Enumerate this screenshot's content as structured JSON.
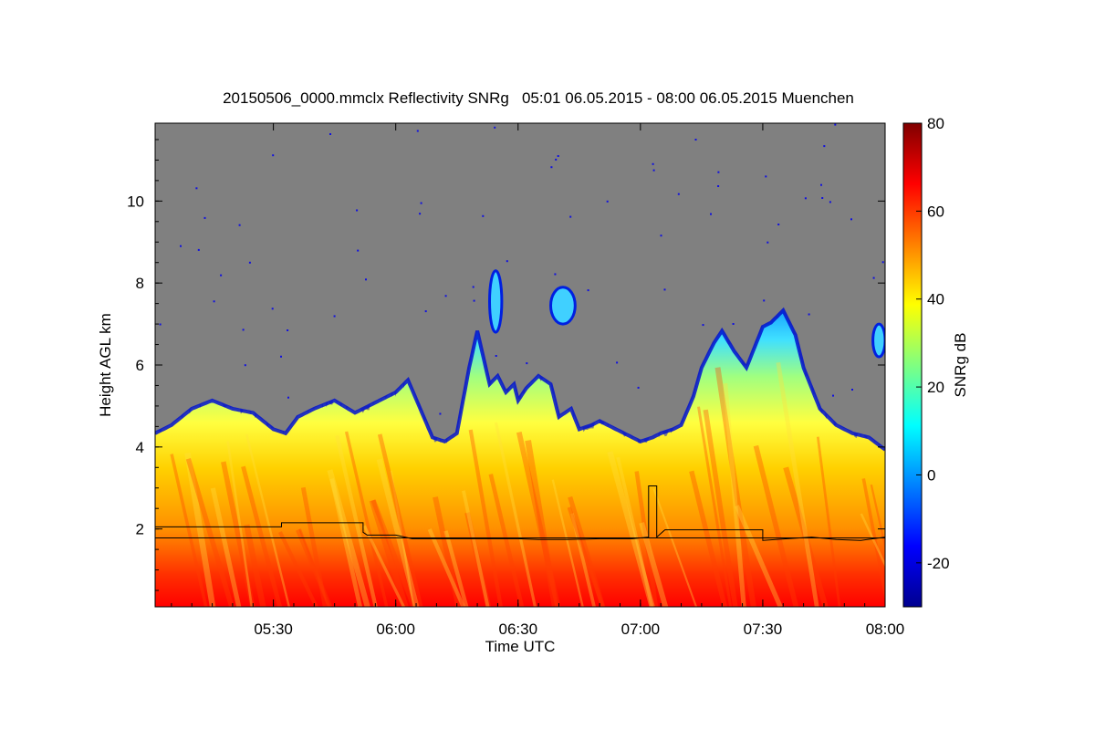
{
  "chart_data": {
    "type": "heatmap",
    "title": "20150506_0000.mmclx Reflectivity SNRg   05:01 06.05.2015 - 08:00 06.05.2015 Muenchen",
    "xlabel": "Time UTC",
    "ylabel": "Height AGL km",
    "colorbar_label": "SNRg dB",
    "x_range_minutes": [
      301,
      480
    ],
    "x_ticks": [
      {
        "minutes": 330,
        "label": "05:30"
      },
      {
        "minutes": 360,
        "label": "06:00"
      },
      {
        "minutes": 390,
        "label": "06:30"
      },
      {
        "minutes": 420,
        "label": "07:00"
      },
      {
        "minutes": 450,
        "label": "07:30"
      },
      {
        "minutes": 480,
        "label": "08:00"
      }
    ],
    "y_range_km": [
      0.1,
      11.9
    ],
    "y_ticks": [
      {
        "value": 2,
        "label": "2"
      },
      {
        "value": 4,
        "label": "4"
      },
      {
        "value": 6,
        "label": "6"
      },
      {
        "value": 8,
        "label": "8"
      },
      {
        "value": 10,
        "label": "10"
      }
    ],
    "colorbar_range": [
      -30,
      80
    ],
    "colorbar_ticks": [
      {
        "value": -20,
        "label": "-20"
      },
      {
        "value": 0,
        "label": "0"
      },
      {
        "value": 20,
        "label": "20"
      },
      {
        "value": 40,
        "label": "40"
      },
      {
        "value": 60,
        "label": "60"
      },
      {
        "value": 80,
        "label": "80"
      }
    ],
    "colormap": [
      "#00008f",
      "#0000ff",
      "#0080ff",
      "#00ffff",
      "#80ff80",
      "#ffff00",
      "#ff8000",
      "#ff0000",
      "#800000"
    ],
    "background_color": "#808080",
    "echo_top_km": {
      "minutes": [
        301,
        305,
        310,
        315,
        320,
        325,
        330,
        333,
        336,
        340,
        345,
        350,
        352,
        356,
        360,
        363,
        366,
        369,
        372,
        375,
        378,
        380,
        383,
        385,
        387,
        389,
        390,
        392,
        395,
        398,
        400,
        403,
        405,
        408,
        410,
        414,
        418,
        420,
        423,
        425,
        428,
        430,
        433,
        435,
        438,
        440,
        443,
        446,
        448,
        450,
        452,
        455,
        458,
        460,
        464,
        468,
        472,
        476,
        480
      ],
      "values": [
        4.4,
        4.6,
        5.0,
        5.2,
        5.0,
        4.9,
        4.5,
        4.4,
        4.8,
        5.0,
        5.2,
        4.9,
        5.0,
        5.2,
        5.4,
        5.7,
        5.0,
        4.3,
        4.2,
        4.4,
        6.0,
        6.9,
        5.6,
        5.8,
        5.4,
        5.6,
        5.2,
        5.5,
        5.8,
        5.6,
        4.8,
        5.0,
        4.5,
        4.6,
        4.7,
        4.5,
        4.3,
        4.2,
        4.3,
        4.4,
        4.5,
        4.6,
        5.3,
        6.0,
        6.6,
        6.9,
        6.4,
        6.0,
        6.5,
        7.0,
        7.1,
        7.4,
        6.8,
        6.0,
        5.0,
        4.6,
        4.4,
        4.3,
        4.0
      ]
    },
    "isolated_echoes": [
      {
        "minutes": [
          383,
          386
        ],
        "height_km": [
          6.8,
          8.3
        ]
      },
      {
        "minutes": [
          398,
          404
        ],
        "height_km": [
          7.0,
          7.9
        ]
      },
      {
        "minutes": [
          477,
          480
        ],
        "height_km": [
          6.2,
          7.0
        ]
      }
    ],
    "lines": [
      {
        "name": "upper_line",
        "x_minutes": [
          301,
          332,
          332,
          352,
          352,
          353,
          360,
          364,
          371,
          380,
          390,
          395,
          402,
          410,
          418,
          420,
          422,
          422,
          424,
          424,
          426,
          440,
          442,
          450,
          450,
          456,
          462,
          468,
          474,
          480
        ],
        "y_km": [
          2.05,
          2.05,
          2.15,
          2.15,
          1.92,
          1.85,
          1.85,
          1.76,
          1.76,
          1.76,
          1.76,
          1.74,
          1.74,
          1.76,
          1.76,
          1.78,
          1.8,
          3.05,
          3.05,
          1.8,
          1.98,
          1.98,
          1.98,
          1.98,
          1.72,
          1.76,
          1.8,
          1.74,
          1.72,
          1.8
        ]
      },
      {
        "name": "lower_line",
        "x_minutes": [
          301,
          480
        ],
        "y_km": [
          1.78,
          1.78
        ]
      }
    ]
  }
}
